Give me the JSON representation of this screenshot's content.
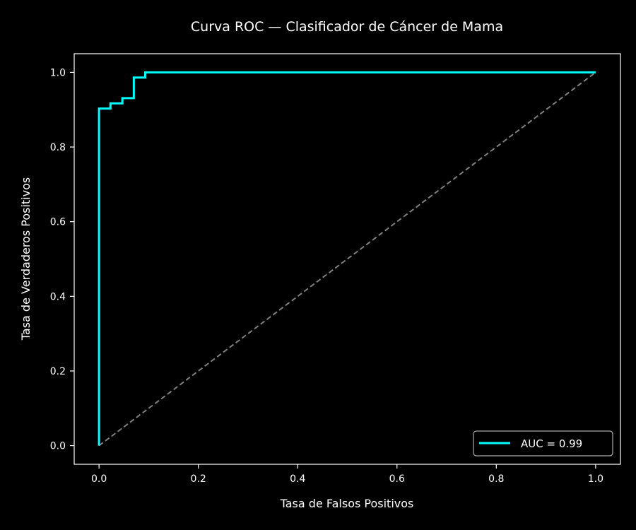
{
  "chart_data": {
    "type": "line",
    "title": "Curva ROC — Clasificador de Cáncer de Mama",
    "xlabel": "Tasa de Falsos Positivos",
    "ylabel": "Tasa de Verdaderos Positivos",
    "xlim": [
      -0.05,
      1.05
    ],
    "ylim": [
      -0.05,
      1.05
    ],
    "xticks": [
      0.0,
      0.2,
      0.4,
      0.6,
      0.8,
      1.0
    ],
    "yticks": [
      0.0,
      0.2,
      0.4,
      0.6,
      0.8,
      1.0
    ],
    "tick_labels_x": [
      "0.0",
      "0.2",
      "0.4",
      "0.6",
      "0.8",
      "1.0"
    ],
    "tick_labels_y": [
      "0.0",
      "0.2",
      "0.4",
      "0.6",
      "0.8",
      "1.0"
    ],
    "grid": false,
    "legend_position": "lower-right",
    "background": "#000000",
    "series": [
      {
        "name": "AUC = 0.99",
        "color": "#00ffff",
        "style": "solid",
        "x": [
          0.0,
          0.0,
          0.023,
          0.023,
          0.047,
          0.047,
          0.07,
          0.07,
          0.093,
          0.093,
          1.0
        ],
        "y": [
          0.0,
          0.903,
          0.903,
          0.917,
          0.917,
          0.931,
          0.931,
          0.986,
          0.986,
          1.0,
          1.0
        ]
      },
      {
        "color": "#808080",
        "style": "dashed",
        "x": [
          0.0,
          1.0
        ],
        "y": [
          0.0,
          1.0
        ]
      }
    ]
  }
}
